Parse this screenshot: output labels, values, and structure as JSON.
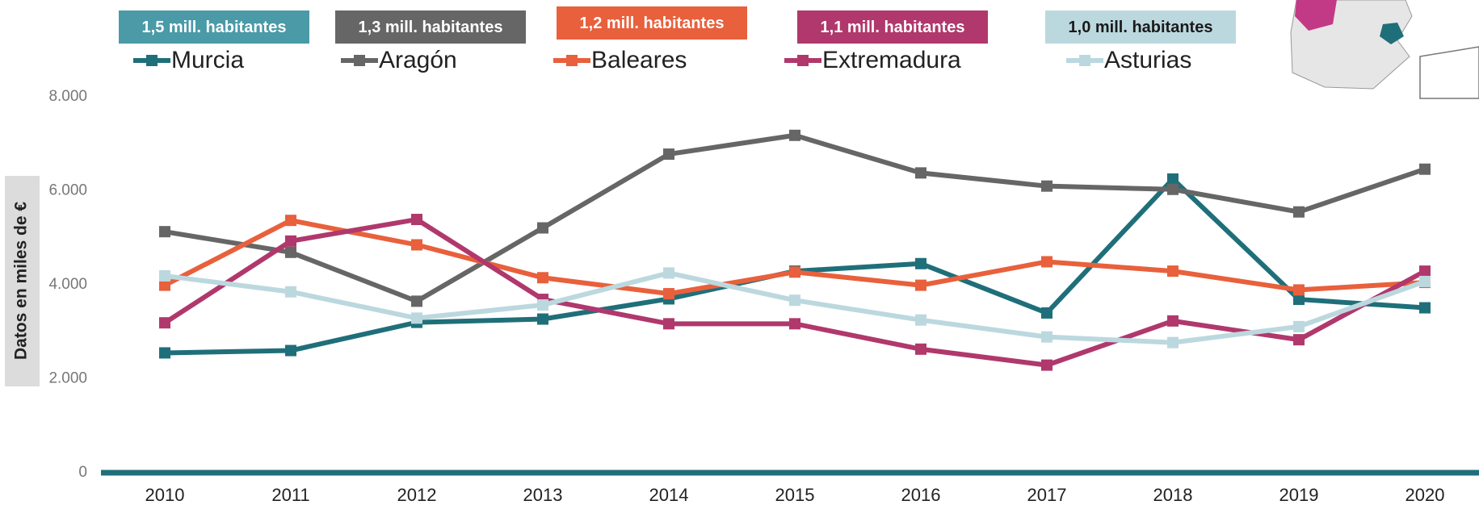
{
  "chart_data": {
    "type": "line",
    "y_axis_label": "Datos en miles de €",
    "categories": [
      "2010",
      "2011",
      "2012",
      "2013",
      "2014",
      "2015",
      "2016",
      "2017",
      "2018",
      "2019",
      "2020"
    ],
    "series": [
      {
        "name": "Murcia",
        "color": "#1f6f7a",
        "values": [
          2550,
          2600,
          3200,
          3270,
          3700,
          4290,
          4450,
          3400,
          6250,
          3690,
          3510
        ]
      },
      {
        "name": "Aragón",
        "color": "#666666",
        "values": [
          5130,
          4690,
          3650,
          5210,
          6780,
          7180,
          6380,
          6100,
          6030,
          5550,
          6460
        ]
      },
      {
        "name": "Baleares",
        "color": "#e8603c",
        "values": [
          3990,
          5370,
          4850,
          4150,
          3810,
          4270,
          3990,
          4490,
          4290,
          3890,
          4050
        ]
      },
      {
        "name": "Extremadura",
        "color": "#b0386c",
        "values": [
          3190,
          4930,
          5390,
          3690,
          3170,
          3170,
          2630,
          2290,
          3230,
          2830,
          4290
        ]
      },
      {
        "name": "Asturias",
        "color": "#bcd8df",
        "values": [
          4190,
          3850,
          3290,
          3570,
          4250,
          3670,
          3250,
          2890,
          2770,
          3110,
          4070
        ]
      }
    ],
    "badges": [
      {
        "text": "1,5 mill. habitantes",
        "color": "#4a9aa8",
        "text_color": "#ffffff"
      },
      {
        "text": "1,3 mill. habitantes",
        "color": "#666666",
        "text_color": "#ffffff"
      },
      {
        "text": "1,2 mill. habitantes",
        "color": "#e8603c",
        "text_color": "#ffffff"
      },
      {
        "text": "1,1 mill. habitantes",
        "color": "#b0386c",
        "text_color": "#ffffff"
      },
      {
        "text": "1,0 mill. habitantes",
        "color": "#bcd8df",
        "text_color": "#1a1a1a"
      }
    ],
    "ylim": [
      0,
      8000
    ],
    "yticks": [
      0,
      {
        "value": 2000,
        "label": "2.000"
      },
      {
        "value": 4000,
        "label": "4.000"
      },
      {
        "value": 6000,
        "label": "6.000"
      },
      {
        "value": 8000,
        "label": "8.000"
      }
    ],
    "axis_color": "#1f6f7a",
    "grid": false
  }
}
